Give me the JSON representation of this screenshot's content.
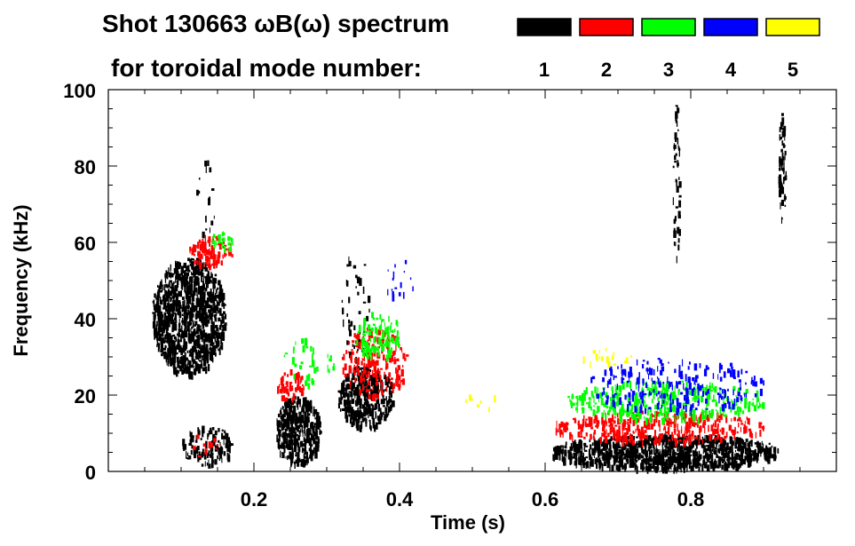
{
  "chart_data": {
    "type": "heatmap",
    "title_line1": "Shot 130663 ωB(ω) spectrum",
    "title_line2": "for toroidal mode number:",
    "xlabel": "Time (s)",
    "ylabel": "Frequency (kHz)",
    "xlim": [
      0,
      1.0
    ],
    "ylim": [
      0,
      100
    ],
    "xticks": [
      0.2,
      0.4,
      0.6,
      0.8
    ],
    "xtick_labels": [
      "0.2",
      "0.4",
      "0.6",
      "0.8"
    ],
    "yticks": [
      0,
      20,
      40,
      60,
      80,
      100
    ],
    "ytick_labels": [
      "0",
      "20",
      "40",
      "60",
      "80",
      "100"
    ],
    "legend": {
      "placement": "top-right",
      "entries": [
        {
          "label": "1",
          "color": "#000000"
        },
        {
          "label": "2",
          "color": "#ff0000"
        },
        {
          "label": "3",
          "color": "#00ff00"
        },
        {
          "label": "4",
          "color": "#0000ff"
        },
        {
          "label": "5",
          "color": "#ffff00"
        }
      ]
    },
    "regions": [
      {
        "mode": 1,
        "t": [
          0.06,
          0.16
        ],
        "f": [
          26,
          56
        ],
        "density": 0.75
      },
      {
        "mode": 1,
        "t": [
          0.1,
          0.17
        ],
        "f": [
          2,
          12
        ],
        "density": 0.35
      },
      {
        "mode": 1,
        "t": [
          0.23,
          0.29
        ],
        "f": [
          2,
          20
        ],
        "density": 0.8
      },
      {
        "mode": 1,
        "t": [
          0.315,
          0.39
        ],
        "f": [
          12,
          28
        ],
        "density": 0.65
      },
      {
        "mode": 1,
        "t": [
          0.32,
          0.36
        ],
        "f": [
          30,
          60
        ],
        "density": 0.08
      },
      {
        "mode": 1,
        "t": [
          0.61,
          0.92
        ],
        "f": [
          1,
          10
        ],
        "density": 0.8
      },
      {
        "mode": 1,
        "t": [
          0.12,
          0.15
        ],
        "f": [
          60,
          82
        ],
        "density": 0.06
      },
      {
        "mode": 1,
        "t": [
          0.775,
          0.785
        ],
        "f": [
          55,
          97
        ],
        "density": 0.25
      },
      {
        "mode": 1,
        "t": [
          0.92,
          0.93
        ],
        "f": [
          65,
          94
        ],
        "density": 0.4
      },
      {
        "mode": 2,
        "t": [
          0.11,
          0.17
        ],
        "f": [
          54,
          62
        ],
        "density": 0.45
      },
      {
        "mode": 2,
        "t": [
          0.23,
          0.27
        ],
        "f": [
          19,
          27
        ],
        "density": 0.35
      },
      {
        "mode": 2,
        "t": [
          0.32,
          0.41
        ],
        "f": [
          20,
          38
        ],
        "density": 0.25
      },
      {
        "mode": 2,
        "t": [
          0.61,
          0.9
        ],
        "f": [
          8,
          16
        ],
        "density": 0.35
      },
      {
        "mode": 2,
        "t": [
          0.11,
          0.15
        ],
        "f": [
          4,
          10
        ],
        "density": 0.1
      },
      {
        "mode": 3,
        "t": [
          0.14,
          0.17
        ],
        "f": [
          58,
          63
        ],
        "density": 0.3
      },
      {
        "mode": 3,
        "t": [
          0.34,
          0.4
        ],
        "f": [
          30,
          42
        ],
        "density": 0.3
      },
      {
        "mode": 3,
        "t": [
          0.63,
          0.9
        ],
        "f": [
          14,
          24
        ],
        "density": 0.3
      },
      {
        "mode": 3,
        "t": [
          0.24,
          0.31
        ],
        "f": [
          22,
          36
        ],
        "density": 0.08
      },
      {
        "mode": 4,
        "t": [
          0.66,
          0.9
        ],
        "f": [
          16,
          30
        ],
        "density": 0.15
      },
      {
        "mode": 4,
        "t": [
          0.38,
          0.42
        ],
        "f": [
          44,
          56
        ],
        "density": 0.06
      },
      {
        "mode": 5,
        "t": [
          0.65,
          0.72
        ],
        "f": [
          28,
          33
        ],
        "density": 0.1
      },
      {
        "mode": 5,
        "t": [
          0.49,
          0.54
        ],
        "f": [
          16,
          22
        ],
        "density": 0.05
      }
    ]
  }
}
